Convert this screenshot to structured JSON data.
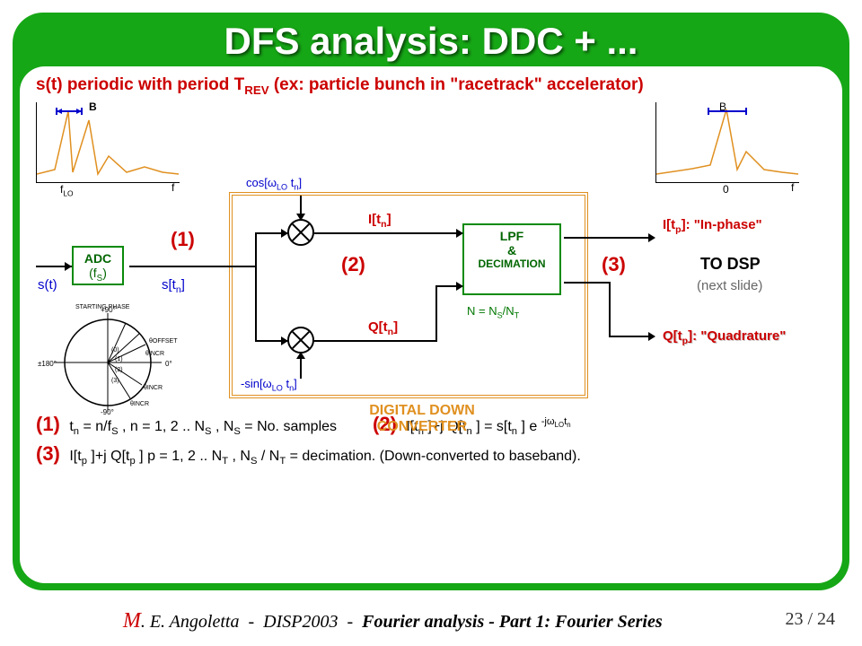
{
  "title": "DFS analysis: DDC + ...",
  "subtitle_html": "s(t) periodic with period T<sub>REV</sub> (ex: particle bunch in \"racetrack\" accelerator)",
  "footer": {
    "author": "M. E. Angoletta",
    "conf": "DISP2003",
    "topic": "Fourier analysis - Part 1: Fourier Series",
    "page": "23 / 24"
  },
  "colors": {
    "frame": "#16a716",
    "accent_red": "#c00000",
    "accent_orange": "#e09020",
    "accent_green": "#0a8a0a",
    "accent_blue": "#0000cc",
    "spectrum": "#e09020"
  },
  "spectrum_left": {
    "B_label": "B",
    "xlabels": [
      "f_LO",
      "f"
    ],
    "bracket_color": "#0000cc"
  },
  "spectrum_right": {
    "B_label": "B",
    "xlabels": [
      "0",
      "f"
    ],
    "bracket_color": "#0000cc"
  },
  "blocks": {
    "adc": {
      "line1": "ADC",
      "line2": "(f<sub>S</sub>)"
    },
    "lpf": {
      "line1": "LPF",
      "line2": "&",
      "line3": "DECIMATION",
      "note": "N = N<sub>S</sub>/N<sub>T</sub>"
    },
    "ddc": "DIGITAL DOWN CONVERTER"
  },
  "signals": {
    "st": "s(t)",
    "stn": "s[t<sub>n</sub>]",
    "cos": "cos[ω<sub>LO</sub> t<sub>n</sub>]",
    "nsin": "-sin[ω<sub>LO</sub> t<sub>n</sub>]",
    "Itn": "I[t<sub>n</sub>]",
    "Qtn": "Q[t<sub>n</sub>]",
    "Itp": "I[t<sub>p</sub>]: \"In-phase\"",
    "Qtp": "Q[t<sub>p</sub>]: \"Quadrature\"",
    "todsp": "TO DSP",
    "next": "(next slide)"
  },
  "tags": {
    "one": "(1)",
    "two": "(2)",
    "three": "(3)"
  },
  "notes": {
    "one": "t<sub>n</sub> = n/f<sub>S</sub> , n = 1, 2 .. N<sub>S</sub> , N<sub>S</sub> = No. samples",
    "two": "I[t<sub>n</sub> ]+j Q[t<sub>n</sub> ] = s[t<sub>n</sub> ] e <sup>-jω<sub>LO</sub>t<sub>n</sub></sup>",
    "three": "I[t<sub>p</sub> ]+j Q[t<sub>p</sub> ]  p = 1, 2 .. N<sub>T</sub> , N<sub>S</sub> / N<sub>T</sub> = decimation. (Down-converted to baseband)."
  },
  "phasor": {
    "labels": [
      "STARTING PHASE",
      "+90°",
      "±180°",
      "0°",
      "-90°",
      "θ_OFFSET",
      "θ_INCR"
    ]
  }
}
